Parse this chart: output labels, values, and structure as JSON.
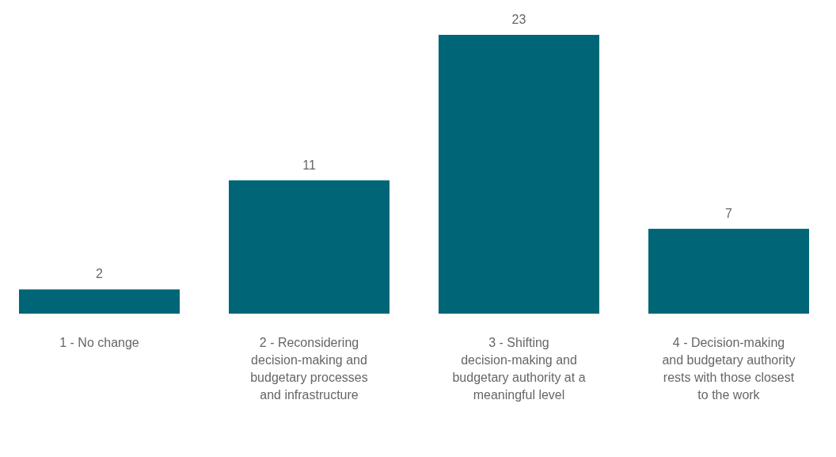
{
  "chart_data": {
    "type": "bar",
    "categories": [
      "1 - No change",
      "2 - Reconsidering decision-making and budgetary processes and infrastructure",
      "3 - Shifting decision-making and budgetary authority at a meaningful level",
      "4 - Decision-making and budgetary authority rests with those closest to the work"
    ],
    "values": [
      2,
      11,
      23,
      7
    ],
    "color": "#006677",
    "data_labels": true
  }
}
